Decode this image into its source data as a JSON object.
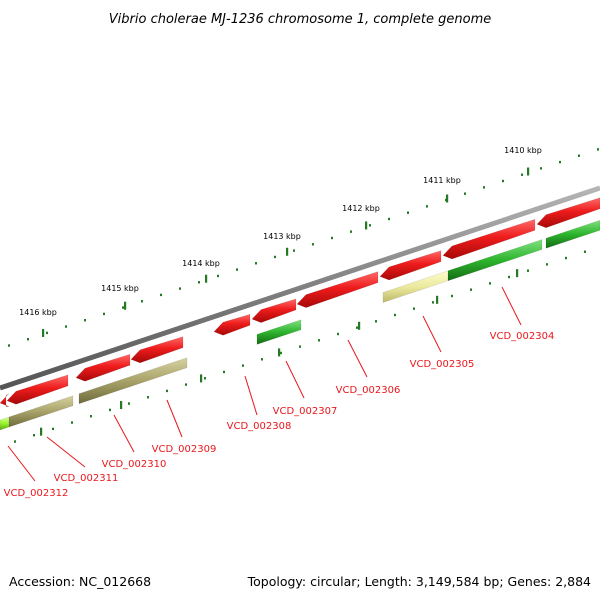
{
  "title": "Vibrio cholerae MJ-1236 chromosome 1, complete genome",
  "accession": "Accession: NC_012668",
  "summary": "Topology: circular; Length: 3,149,584 bp; Genes: 2,884",
  "colors": {
    "backbone": "#8a8a8a",
    "gene_forward": "#ee1c1c",
    "gene_green": "#2db52d",
    "gene_olive": "#a9a36a",
    "gene_pale_yellow": "#ecea9e",
    "gene_lime": "#9af22e",
    "tick": "#237a23",
    "label": "#e8171d"
  },
  "kbp_labels": [
    "1410 kbp",
    "1411 kbp",
    "1412 kbp",
    "1413 kbp",
    "1414 kbp",
    "1415 kbp",
    "1416 kbp"
  ],
  "gene_labels": [
    "VCD_002304",
    "VCD_002305",
    "VCD_002306",
    "VCD_002307",
    "VCD_002308",
    "VCD_002309",
    "VCD_002310",
    "VCD_002311",
    "VCD_002312"
  ]
}
